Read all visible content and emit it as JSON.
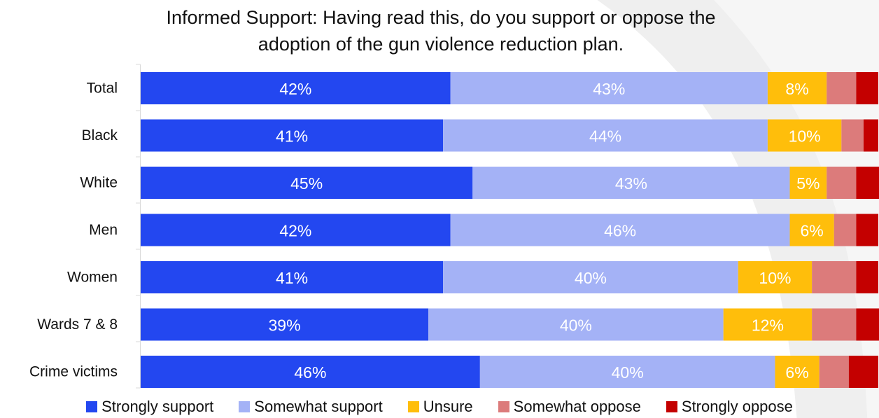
{
  "chart_data": {
    "type": "bar",
    "orientation": "horizontal",
    "stacked": true,
    "title_lines": [
      "Informed Support: Having read this, do you support or oppose the",
      "adoption of the gun violence reduction plan."
    ],
    "categories": [
      "Total",
      "Black",
      "White",
      "Men",
      "Women",
      "Wards 7 & 8",
      "Crime victims"
    ],
    "series": [
      {
        "name": "Strongly support",
        "color": "#2347f0",
        "label_color": "#ffffff",
        "values": [
          42,
          41,
          45,
          42,
          41,
          39,
          46
        ]
      },
      {
        "name": "Somewhat support",
        "color": "#a4b2f6",
        "label_color": "#ffffff",
        "values": [
          43,
          44,
          43,
          46,
          40,
          40,
          40
        ]
      },
      {
        "name": "Unsure",
        "color": "#ffbe0b",
        "label_color": "#ffffff",
        "values": [
          8,
          10,
          5,
          6,
          10,
          12,
          6
        ]
      },
      {
        "name": "Somewhat oppose",
        "color": "#dc7b7b",
        "label_color": "#ffffff",
        "values": [
          4,
          3,
          4,
          3,
          6,
          6,
          4
        ]
      },
      {
        "name": "Strongly oppose",
        "color": "#c40000",
        "label_color": "#ffffff",
        "values": [
          3,
          2,
          4,
          3,
          3,
          4,
          4
        ]
      }
    ],
    "labeled_series": [
      "Strongly support",
      "Somewhat support",
      "Unsure"
    ],
    "value_suffix": "%",
    "xlim": [
      0,
      100
    ],
    "legend_position": "bottom",
    "grid": false
  }
}
